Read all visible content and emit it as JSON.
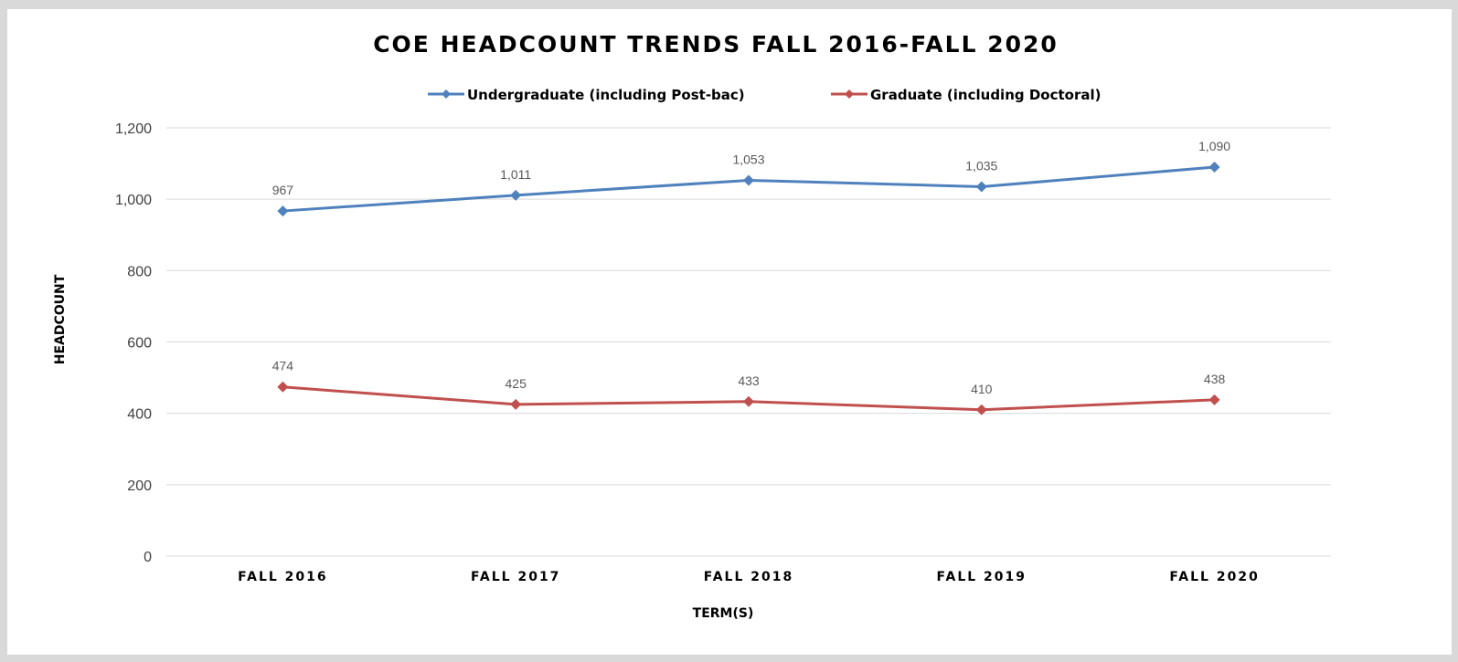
{
  "chart_data": {
    "type": "line",
    "title": "COE HEADCOUNT TRENDS FALL 2016-FALL 2020",
    "xlabel": "TERM(S)",
    "ylabel": "HEADCOUNT",
    "categories": [
      "FALL 2016",
      "FALL 2017",
      "FALL 2018",
      "FALL 2019",
      "FALL 2020"
    ],
    "ylim": [
      0,
      1200
    ],
    "yticks": [
      0,
      200,
      400,
      600,
      800,
      1000,
      1200
    ],
    "ytick_labels": [
      "0",
      "200",
      "400",
      "600",
      "800",
      "1,000",
      "1,200"
    ],
    "grid": true,
    "legend_position": "top",
    "series": [
      {
        "name": "Undergraduate (including Post-bac)",
        "color": "#4f81bd",
        "values": [
          967,
          1011,
          1053,
          1035,
          1090
        ],
        "labels": [
          "967",
          "1,011",
          "1,053",
          "1,035",
          "1,090"
        ]
      },
      {
        "name": "Graduate (including Doctoral)",
        "color": "#c0504d",
        "values": [
          474,
          425,
          433,
          410,
          438
        ],
        "labels": [
          "474",
          "425",
          "433",
          "410",
          "438"
        ]
      }
    ]
  }
}
